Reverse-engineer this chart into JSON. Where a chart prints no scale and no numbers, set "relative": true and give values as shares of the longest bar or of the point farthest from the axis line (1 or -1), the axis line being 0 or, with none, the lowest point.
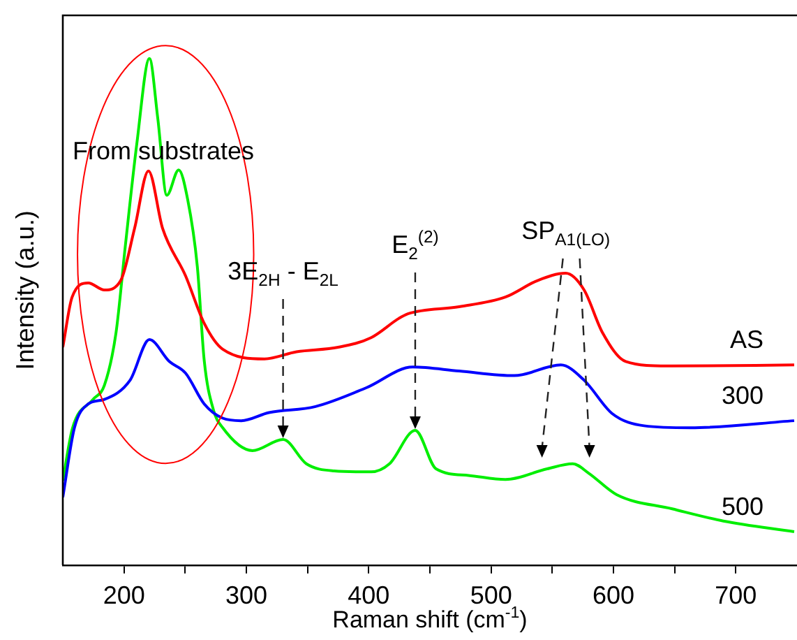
{
  "chart_data": {
    "type": "line",
    "relative": true,
    "xlabel": "Raman shift (cm$^{-1}$)",
    "ylabel": "Intensity (a.u.)",
    "xlim": [
      150,
      750
    ],
    "xticks": [
      200,
      {
        "value": 250,
        "label": null
      },
      300,
      {
        "value": 350,
        "label": null
      },
      400,
      {
        "value": 450,
        "label": null
      },
      500,
      {
        "value": 550,
        "label": null
      },
      600,
      {
        "value": 650,
        "label": null
      },
      700
    ],
    "tick_labels": "x",
    "grid": false,
    "legend": false,
    "marker": "none",
    "line_style": "solid",
    "annotations": [
      "From substrates",
      {
        "text": "3E$_{2H}$ - E$_{2L}$",
        "x": 330,
        "y": 0.248
      },
      {
        "text": "E$_{2}$$^{(2)}$",
        "x": 438,
        "y": 0.266
      },
      {
        "text": "SP$_{A1(LO)}$",
        "x": 561,
        "y": 0.576
      }
    ],
    "series": [
      {
        "name": "AS",
        "color": "#ff0000",
        "x": [
          150,
          157.6,
          170.8,
          184,
          197.4,
          208.7,
          220,
          231.5,
          250.3,
          265.6,
          280.7,
          314.8,
          341,
          375,
          402,
          424.7,
          432,
          473.9,
          511.7,
          538.3,
          561,
          576,
          591,
          610,
          644,
          747.7
        ],
        "values": [
          0.43,
          0.529,
          0.557,
          0.543,
          0.562,
          0.665,
          0.778,
          0.665,
          0.571,
          0.477,
          0.426,
          0.407,
          0.421,
          0.43,
          0.449,
          0.487,
          0.496,
          0.51,
          0.529,
          0.562,
          0.576,
          0.543,
          0.459,
          0.402,
          0.393,
          0.395
        ]
      },
      {
        "name": "300",
        "color": "#0000ff",
        "x": [
          150,
          159.5,
          170.8,
          184,
          205,
          220.8,
          237,
          250.3,
          265.6,
          280.7,
          295.8,
          318.5,
          356.5,
          398,
          436,
          474,
          519,
          557,
          576,
          599,
          625,
          663,
          747.7
        ],
        "values": [
          0.134,
          0.271,
          0.318,
          0.327,
          0.365,
          0.445,
          0.402,
          0.379,
          0.318,
          0.29,
          0.285,
          0.301,
          0.313,
          0.35,
          0.391,
          0.383,
          0.374,
          0.395,
          0.365,
          0.299,
          0.275,
          0.271,
          0.285
        ]
      },
      {
        "name": "500",
        "color": "#00ee00",
        "x": [
          150,
          158,
          174.7,
          184,
          193.5,
          201,
          210.6,
          220.8,
          227.6,
          235,
          244.7,
          252,
          259.9,
          265.6,
          273,
          280.7,
          305,
          330,
          349,
          371.6,
          402,
          417,
          438,
          455,
          481.5,
          511.7,
          545.8,
          566.7,
          580,
          602.6,
          648,
          689.8,
          747.7
        ],
        "values": [
          0.167,
          0.271,
          0.327,
          0.355,
          0.459,
          0.628,
          0.834,
          1.0,
          0.882,
          0.73,
          0.78,
          0.722,
          0.59,
          0.403,
          0.307,
          0.271,
          0.226,
          0.248,
          0.2,
          0.186,
          0.184,
          0.2,
          0.266,
          0.19,
          0.177,
          0.169,
          0.19,
          0.2,
          0.181,
          0.139,
          0.111,
          0.087,
          0.066
        ]
      }
    ]
  }
}
